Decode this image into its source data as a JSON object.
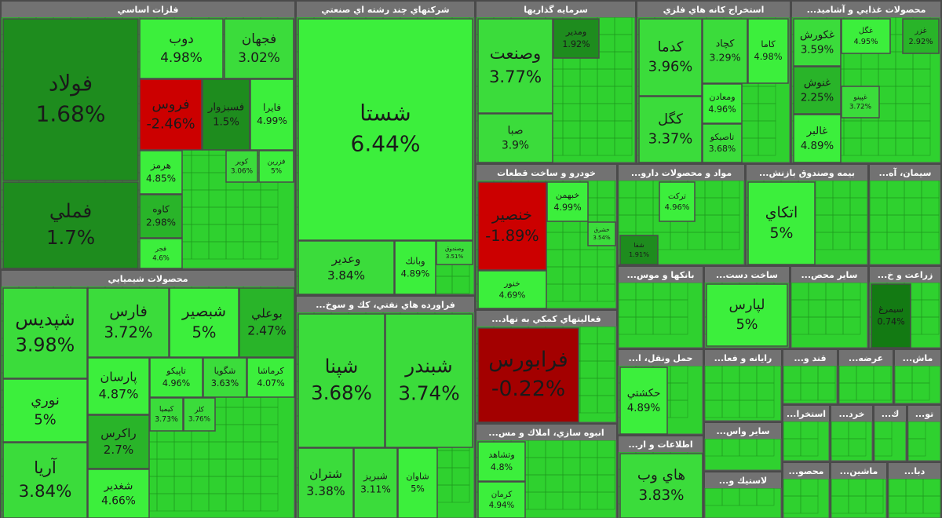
{
  "chart_data": {
    "type": "treemap",
    "groups": [
      {
        "name": "فلزات اساسي",
        "categories": [
          "فولاد",
          "فملي",
          "دوب",
          "فجهان",
          "فروس",
          "فسبزوار",
          "فايرا",
          "هرمز",
          "كاوه",
          "فجر",
          "كوير",
          "فزرين"
        ],
        "values": [
          1.68,
          1.7,
          4.98,
          3.02,
          -2.46,
          1.5,
          4.99,
          4.85,
          2.98,
          4.6,
          3.06,
          5
        ],
        "value_labels": [
          "1.68%",
          "1.7%",
          "4.98%",
          "3.02%",
          "-2.46%",
          "1.5%",
          "4.99%",
          "4.85%",
          "2.98%",
          "4.6%",
          "3.06%",
          "5%"
        ]
      },
      {
        "name": "شركتهاي چند رشته اي صنعتي",
        "categories": [
          "شستا",
          "وعدير",
          "وبانك",
          "وصندوق"
        ],
        "values": [
          6.44,
          3.84,
          4.89,
          3.51
        ],
        "value_labels": [
          "6.44%",
          "3.84%",
          "4.89%",
          "3.51%"
        ]
      },
      {
        "name": "محصولات شيميايي",
        "categories": [
          "شپديس",
          "نوري",
          "آريا",
          "فارس",
          "شبصير",
          "بوعلي",
          "پارسان",
          "راكرس",
          "شغدير",
          "تاپيكو",
          "شگويا",
          "كرماشا",
          "كيميا",
          "كلر"
        ],
        "values": [
          3.98,
          5,
          3.84,
          3.72,
          5,
          2.47,
          4.87,
          2.7,
          4.66,
          4.96,
          3.63,
          4.07,
          3.73,
          3.76
        ],
        "value_labels": [
          "3.98%",
          "5%",
          "3.84%",
          "3.72%",
          "5%",
          "2.47%",
          "4.87%",
          "2.7%",
          "4.66%",
          "4.96%",
          "3.63%",
          "4.07%",
          "3.73%",
          "3.76%"
        ]
      },
      {
        "name": "فراورده هاي نفتي، كك و سوخ...",
        "categories": [
          "شپنا",
          "شبندر",
          "شتران",
          "شبريز",
          "شاوان"
        ],
        "values": [
          3.68,
          3.74,
          3.38,
          3.11,
          5
        ],
        "value_labels": [
          "3.68%",
          "3.74%",
          "3.38%",
          "3.11%",
          "5%"
        ]
      },
      {
        "name": "سرمايه گذاريها",
        "categories": [
          "وصنعت",
          "صبا",
          "ومدير"
        ],
        "values": [
          3.77,
          3.9,
          1.92
        ],
        "value_labels": [
          "3.77%",
          "3.9%",
          "1.92%"
        ]
      },
      {
        "name": "استخراج كانه هاي فلزي",
        "categories": [
          "كدما",
          "كگل",
          "كچاد",
          "كاما",
          "ومعادن",
          "تاصيكو"
        ],
        "values": [
          3.96,
          3.37,
          3.29,
          4.98,
          4.96,
          3.68
        ],
        "value_labels": [
          "3.96%",
          "3.37%",
          "3.29%",
          "4.98%",
          "4.96%",
          "3.68%"
        ]
      },
      {
        "name": "محصولات غذايي و آشاميد...",
        "categories": [
          "غكورش",
          "غگل",
          "غزر",
          "غنوش",
          "غالبر",
          "غپينو"
        ],
        "values": [
          3.59,
          4.95,
          2.92,
          2.25,
          4.89,
          3.72
        ],
        "value_labels": [
          "3.59%",
          "4.95%",
          "2.92%",
          "2.25%",
          "4.89%",
          "3.72%"
        ]
      },
      {
        "name": "خودرو و ساخت قطعات",
        "categories": [
          "خنصير",
          "خبهمن",
          "خنور",
          "خشرق"
        ],
        "values": [
          -1.89,
          4.99,
          4.69,
          3.54
        ],
        "value_labels": [
          "-1.89%",
          "4.99%",
          "4.69%",
          "3.54%"
        ]
      },
      {
        "name": "فعاليتهاي كمكي به نهاد...",
        "categories": [
          "فرابورس"
        ],
        "values": [
          -0.22
        ],
        "value_labels": [
          "-0.22%"
        ]
      },
      {
        "name": "انبوه سازي، املاك و مس...",
        "categories": [
          "وتشاهد",
          "كرمان"
        ],
        "values": [
          4.8,
          4.94
        ],
        "value_labels": [
          "4.8%",
          "4.94%"
        ]
      },
      {
        "name": "مواد و محصولات دارو...",
        "categories": [
          "تركت",
          "شفا"
        ],
        "values": [
          4.96,
          1.91
        ],
        "value_labels": [
          "4.96%",
          "1.91%"
        ]
      },
      {
        "name": "بيمه وصندوق بازنش...",
        "categories": [
          "اتكاي"
        ],
        "values": [
          5
        ],
        "value_labels": [
          "5%"
        ]
      },
      {
        "name": "سيمان، آه...",
        "categories": [],
        "values": [],
        "value_labels": []
      },
      {
        "name": "بانكها و موس...",
        "categories": [],
        "values": [],
        "value_labels": []
      },
      {
        "name": "ساخت دست...",
        "categories": [
          "لپارس"
        ],
        "values": [
          5
        ],
        "value_labels": [
          "5%"
        ]
      },
      {
        "name": "ساير محص...",
        "categories": [],
        "values": [],
        "value_labels": []
      },
      {
        "name": "زراعت و خ...",
        "categories": [
          "سيمرغ"
        ],
        "values": [
          0.74
        ],
        "value_labels": [
          "0.74%"
        ]
      },
      {
        "name": "حمل ونقل، ا...",
        "categories": [
          "حكشتي"
        ],
        "values": [
          4.89
        ],
        "value_labels": [
          "4.89%"
        ]
      },
      {
        "name": "رايانه و فعا...",
        "categories": [],
        "values": [],
        "value_labels": []
      },
      {
        "name": "اطلاعات و ار...",
        "categories": [
          "هاي وب"
        ],
        "values": [
          3.83
        ],
        "value_labels": [
          "3.83%"
        ]
      },
      {
        "name": "ساير واس...",
        "categories": [],
        "values": [],
        "value_labels": []
      },
      {
        "name": "لاستيك و...",
        "categories": [],
        "values": [],
        "value_labels": []
      },
      {
        "name": "قند و...",
        "categories": [],
        "values": [],
        "value_labels": []
      },
      {
        "name": "عرضه...",
        "categories": [],
        "values": [],
        "value_labels": []
      },
      {
        "name": "ماش...",
        "categories": [],
        "values": [],
        "value_labels": []
      },
      {
        "name": "استخرا...",
        "categories": [],
        "values": [],
        "value_labels": []
      },
      {
        "name": "خرد...",
        "categories": [],
        "values": [],
        "value_labels": []
      },
      {
        "name": "ك...",
        "categories": [],
        "values": [],
        "value_labels": []
      },
      {
        "name": "تو...",
        "categories": [],
        "values": [],
        "value_labels": []
      },
      {
        "name": "محصو...",
        "categories": [],
        "values": [],
        "value_labels": []
      },
      {
        "name": "ماشين...",
        "categories": [],
        "values": [],
        "value_labels": []
      },
      {
        "name": "دبا...",
        "categories": [],
        "values": [],
        "value_labels": []
      }
    ]
  }
}
